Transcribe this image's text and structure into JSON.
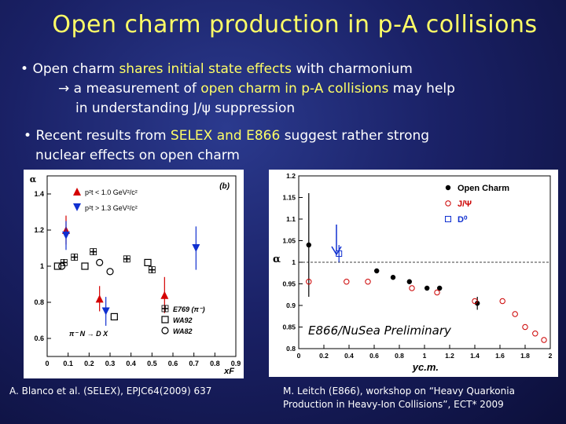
{
  "title": "Open charm production in p-A collisions",
  "bullet1": {
    "marker": "•",
    "pre": "Open charm ",
    "hl1": "shares initial state effects",
    "mid": " with charmonium",
    "line2_arrow": "→",
    "line2_pre": " a measurement of ",
    "line2_hl": "open charm in p-A collisions",
    "line2_post": " may help",
    "line3": "in understanding J/ψ suppression"
  },
  "bullet2": {
    "marker": "•",
    "pre": "Recent results from ",
    "hl": "SELEX and E866",
    "post": " suggest rather strong",
    "line2": "nuclear effects on open charm"
  },
  "left_caption": "A. Blanco et al. (SELEX), EPJC64(2009) 637",
  "right_caption_line1": "M. Leitch (E866), workshop on “Heavy Quarkonia",
  "right_caption_line2": "Production in Heavy-Ion Collisions”, ECT* 2009",
  "chart_data": [
    {
      "type": "scatter",
      "panel_label": "(b)",
      "xlabel": "xF",
      "ylabel": "α",
      "xlim": [
        0,
        0.9
      ],
      "ylim": [
        0.5,
        1.5
      ],
      "x_ticks": [
        "0",
        "0.1",
        "0.2",
        "0.3",
        "0.4",
        "0.5",
        "0.6",
        "0.7",
        "0.8",
        "0.9"
      ],
      "y_ticks": [
        "0.6",
        "0.8",
        "1",
        "1.2",
        "1.4"
      ],
      "annotation": "π⁻ N → D X",
      "legend_top": [
        {
          "name": "p²t < 1.0 GeV²/c²",
          "color": "#d40000",
          "marker": "triangle-up"
        },
        {
          "name": "p²t > 1.3 GeV²/c²",
          "color": "#1030d0",
          "marker": "triangle-down"
        }
      ],
      "legend_bottom": [
        {
          "name": "E769 (π⁻)",
          "marker": "cross"
        },
        {
          "name": "WA92",
          "marker": "square"
        },
        {
          "name": "WA82",
          "marker": "circle"
        }
      ],
      "series": [
        {
          "name": "p²t < 1.0 GeV²/c²",
          "color": "#d40000",
          "marker": "triangle-up",
          "points": [
            {
              "x": 0.09,
              "y": 1.2,
              "yerr": 0.08
            },
            {
              "x": 0.25,
              "y": 0.82,
              "yerr": 0.07
            },
            {
              "x": 0.56,
              "y": 0.84,
              "yerr": 0.1
            }
          ]
        },
        {
          "name": "p²t > 1.3 GeV²/c²",
          "color": "#1030d0",
          "marker": "triangle-down",
          "points": [
            {
              "x": 0.09,
              "y": 1.17,
              "yerr": 0.08
            },
            {
              "x": 0.28,
              "y": 0.75,
              "yerr": 0.08
            },
            {
              "x": 0.71,
              "y": 1.1,
              "yerr": 0.12
            }
          ]
        },
        {
          "name": "E769 (π⁻)",
          "color": "#000000",
          "marker": "cross",
          "points": [
            {
              "x": 0.08,
              "y": 1.02
            },
            {
              "x": 0.13,
              "y": 1.05
            },
            {
              "x": 0.22,
              "y": 1.08
            },
            {
              "x": 0.38,
              "y": 1.04
            },
            {
              "x": 0.5,
              "y": 0.98
            }
          ]
        },
        {
          "name": "WA92",
          "color": "#000000",
          "marker": "square",
          "points": [
            {
              "x": 0.05,
              "y": 1.0
            },
            {
              "x": 0.18,
              "y": 1.0
            },
            {
              "x": 0.32,
              "y": 0.72
            },
            {
              "x": 0.48,
              "y": 1.02
            }
          ]
        },
        {
          "name": "WA82",
          "color": "#000000",
          "marker": "circle",
          "points": [
            {
              "x": 0.07,
              "y": 1.0
            },
            {
              "x": 0.25,
              "y": 1.02
            },
            {
              "x": 0.3,
              "y": 0.97
            }
          ]
        }
      ]
    },
    {
      "type": "scatter",
      "xlabel": "yc.m.",
      "ylabel": "α",
      "xlim": [
        0,
        2
      ],
      "ylim": [
        0.8,
        1.2
      ],
      "x_ticks": [
        "0",
        "0.2",
        "0.4",
        "0.6",
        "0.8",
        "1",
        "1.2",
        "1.4",
        "1.6",
        "1.8",
        "2"
      ],
      "y_ticks": [
        "0.8",
        "0.85",
        "0.9",
        "0.95",
        "1",
        "1.05",
        "1.1",
        "1.15",
        "1.2"
      ],
      "annotation": "E866/NuSea Preliminary",
      "legend": [
        {
          "name": "Open Charm",
          "color": "#000000",
          "marker": "filled-circle"
        },
        {
          "name": "J/Ψ",
          "color": "#cc0000",
          "marker": "open-circle"
        },
        {
          "name": "D⁰",
          "color": "#1030d0",
          "marker": "open-square"
        }
      ],
      "series": [
        {
          "name": "Open Charm",
          "color": "#000000",
          "marker": "filled-circle",
          "points": [
            {
              "x": 0.08,
              "y": 1.04,
              "yerr": 0.12
            },
            {
              "x": 0.62,
              "y": 0.98
            },
            {
              "x": 0.75,
              "y": 0.965
            },
            {
              "x": 0.88,
              "y": 0.955
            },
            {
              "x": 1.02,
              "y": 0.94
            },
            {
              "x": 1.12,
              "y": 0.94
            },
            {
              "x": 1.42,
              "y": 0.905,
              "yerr": 0.015
            }
          ]
        },
        {
          "name": "J/Ψ",
          "color": "#cc0000",
          "marker": "open-circle",
          "points": [
            {
              "x": 0.08,
              "y": 0.955
            },
            {
              "x": 0.38,
              "y": 0.955
            },
            {
              "x": 0.55,
              "y": 0.955
            },
            {
              "x": 0.9,
              "y": 0.94
            },
            {
              "x": 1.1,
              "y": 0.93
            },
            {
              "x": 1.4,
              "y": 0.91
            },
            {
              "x": 1.62,
              "y": 0.91
            },
            {
              "x": 1.72,
              "y": 0.88
            },
            {
              "x": 1.8,
              "y": 0.85
            },
            {
              "x": 1.88,
              "y": 0.835
            },
            {
              "x": 1.95,
              "y": 0.82
            }
          ]
        },
        {
          "name": "D⁰",
          "color": "#1030d0",
          "marker": "open-square",
          "points": [
            {
              "x": 0.32,
              "y": 1.02,
              "yerr": 0.02
            }
          ]
        }
      ]
    }
  ]
}
